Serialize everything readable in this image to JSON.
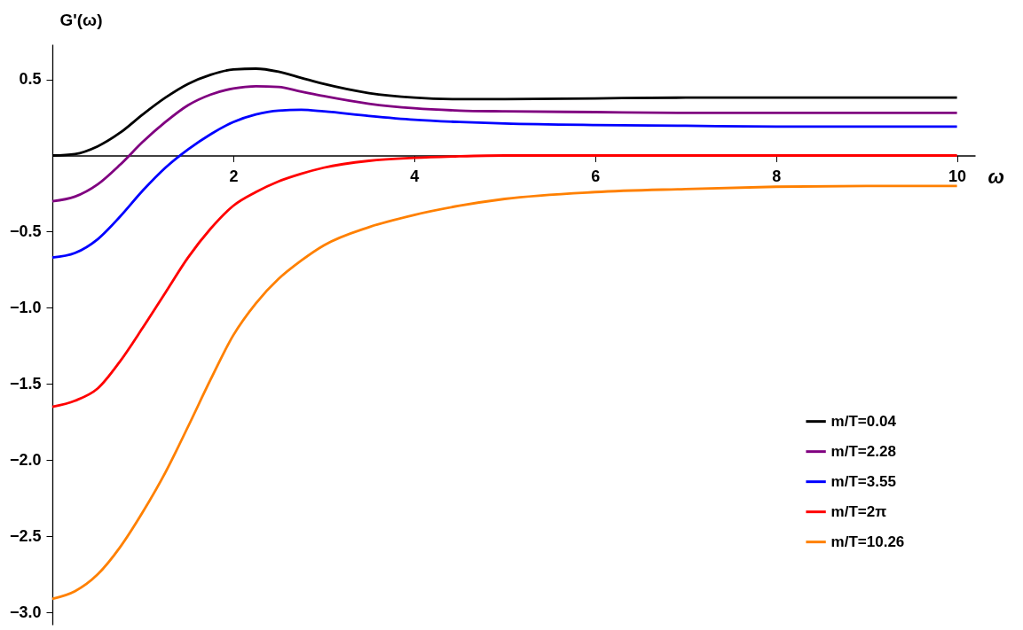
{
  "chart_data": {
    "type": "line",
    "xlabel": "ω",
    "ylabel": "G'(ω)",
    "x": [
      0,
      0.25,
      0.5,
      0.75,
      1,
      1.25,
      1.5,
      1.75,
      2,
      2.25,
      2.5,
      2.75,
      3,
      3.5,
      4,
      4.5,
      5,
      6,
      7,
      8,
      9,
      10
    ],
    "series": [
      {
        "name": "m/T=0.04",
        "color": "#000000",
        "values": [
          0,
          0.01,
          0.06,
          0.15,
          0.27,
          0.38,
          0.47,
          0.53,
          0.565,
          0.57,
          0.55,
          0.51,
          0.47,
          0.41,
          0.38,
          0.37,
          0.37,
          0.375,
          0.38,
          0.38,
          0.38,
          0.38
        ]
      },
      {
        "name": "m/T=2.28",
        "color": "#800080",
        "values": [
          -0.3,
          -0.27,
          -0.19,
          -0.06,
          0.09,
          0.22,
          0.33,
          0.4,
          0.44,
          0.455,
          0.45,
          0.42,
          0.39,
          0.34,
          0.31,
          0.295,
          0.29,
          0.285,
          0.28,
          0.28,
          0.28,
          0.28
        ]
      },
      {
        "name": "m/T=3.55",
        "color": "#0000ff",
        "values": [
          -0.67,
          -0.64,
          -0.55,
          -0.4,
          -0.23,
          -0.08,
          0.04,
          0.14,
          0.22,
          0.27,
          0.295,
          0.3,
          0.29,
          0.26,
          0.235,
          0.22,
          0.21,
          0.2,
          0.195,
          0.19,
          0.19,
          0.19
        ]
      },
      {
        "name": "m/T=2π",
        "color": "#ff0000",
        "values": [
          -1.65,
          -1.61,
          -1.53,
          -1.35,
          -1.13,
          -0.9,
          -0.67,
          -0.48,
          -0.33,
          -0.24,
          -0.17,
          -0.12,
          -0.08,
          -0.035,
          -0.015,
          -0.005,
          0,
          0,
          0,
          0,
          0,
          0
        ]
      },
      {
        "name": "m/T=10.26",
        "color": "#ff8000",
        "values": [
          -2.91,
          -2.86,
          -2.75,
          -2.57,
          -2.34,
          -2.08,
          -1.78,
          -1.47,
          -1.18,
          -0.97,
          -0.81,
          -0.69,
          -0.59,
          -0.47,
          -0.39,
          -0.33,
          -0.285,
          -0.24,
          -0.22,
          -0.205,
          -0.2,
          -0.2
        ]
      }
    ],
    "xlim": [
      0,
      10.2
    ],
    "xticks": [
      2,
      4,
      6,
      8,
      10
    ],
    "ylim": [
      -3.08,
      0.73
    ],
    "yticks": [
      {
        "value": 0.5,
        "label": "0.5"
      },
      {
        "value": -0.5,
        "label": "−0.5"
      },
      {
        "value": -1,
        "label": "−1.0"
      },
      {
        "value": -1.5,
        "label": "−1.5"
      },
      {
        "value": -2,
        "label": "−2.0"
      },
      {
        "value": -2.5,
        "label": "−2.5"
      },
      {
        "value": -3,
        "label": "−3.0"
      }
    ],
    "legend": "right"
  }
}
